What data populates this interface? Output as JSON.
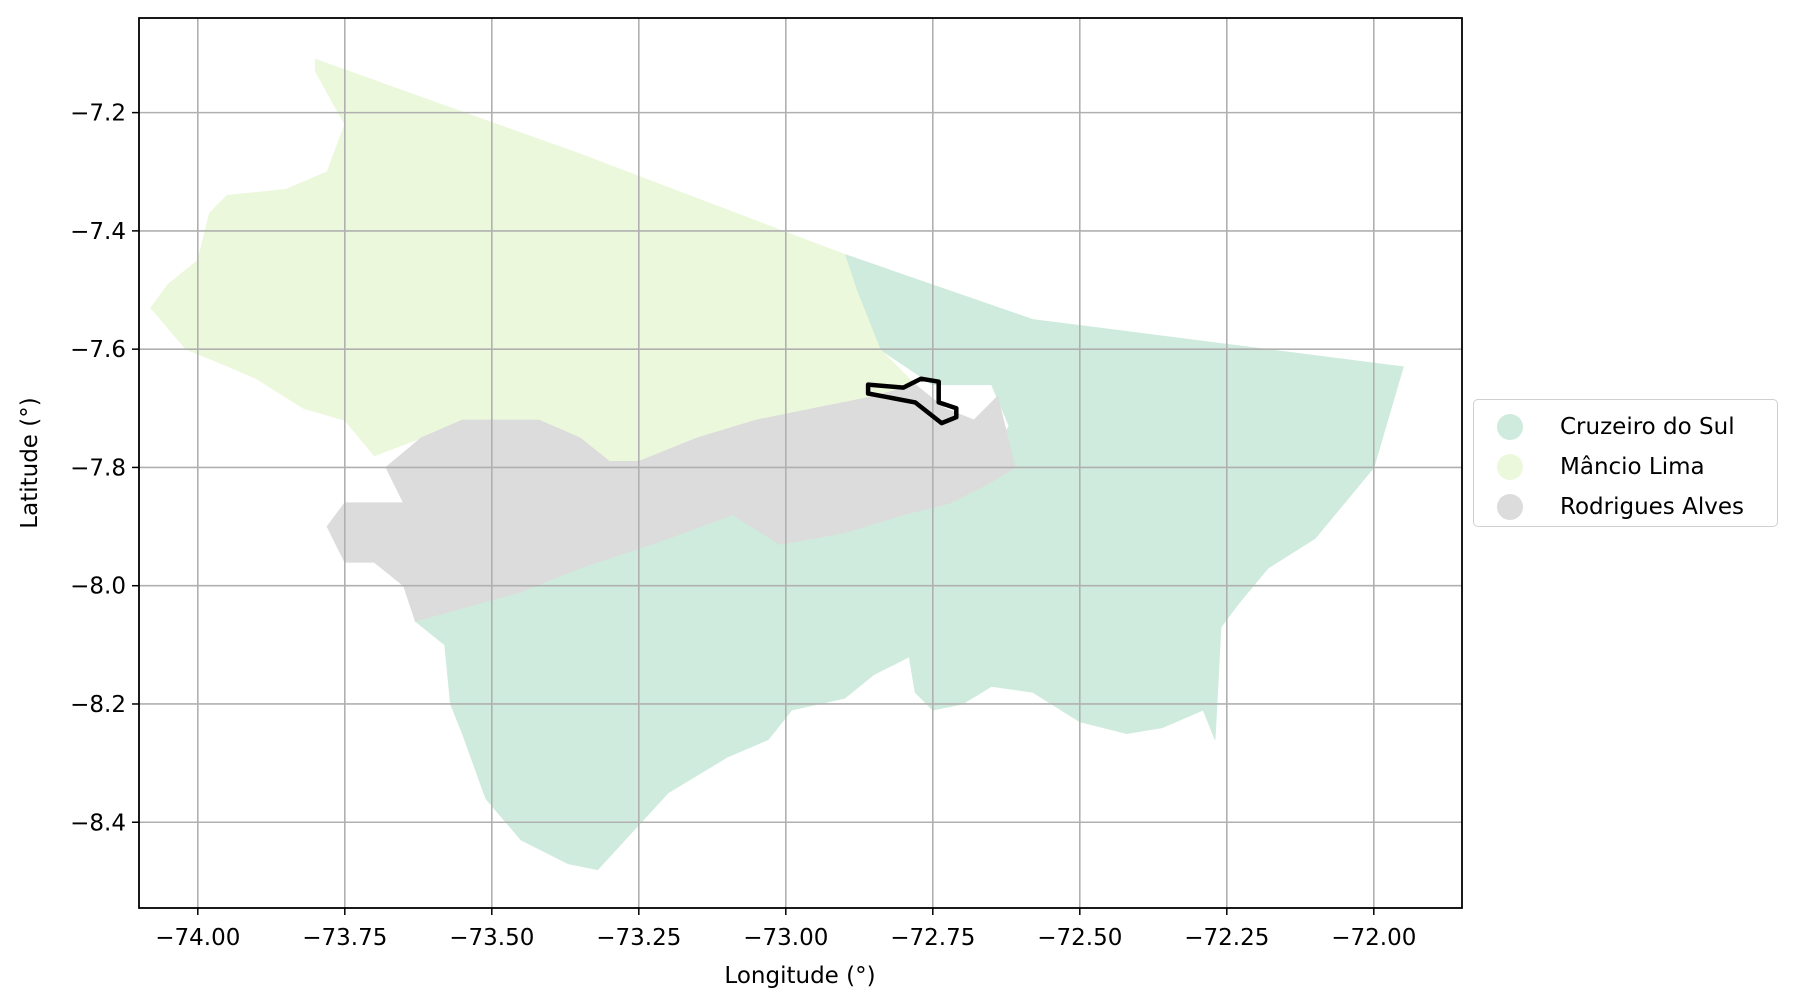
{
  "chart_data": {
    "type": "map",
    "xlabel": "Longitude (°)",
    "ylabel": "Latitude (°)",
    "xlim": [
      -74.1,
      -71.85
    ],
    "ylim": [
      -8.545,
      -7.04
    ],
    "xticks": [
      -74.0,
      -73.75,
      -73.5,
      -73.25,
      -73.0,
      -72.75,
      -72.5,
      -72.25,
      -72.0
    ],
    "xtick_labels": [
      "−74.00",
      "−73.75",
      "−73.50",
      "−73.25",
      "−73.00",
      "−72.75",
      "−72.50",
      "−72.25",
      "−72.00"
    ],
    "yticks": [
      -7.2,
      -7.4,
      -7.6,
      -7.8,
      -8.0,
      -8.2,
      -8.4
    ],
    "ytick_labels": [
      "−7.2",
      "−7.4",
      "−7.6",
      "−7.8",
      "−8.0",
      "−8.2",
      "−8.4"
    ],
    "grid": true,
    "legend_position": "right",
    "regions": [
      {
        "name": "Cruzeiro do Sul",
        "color": "#cfebdd",
        "polygon": [
          [
            -72.9,
            -7.44
          ],
          [
            -72.58,
            -7.55
          ],
          [
            -71.95,
            -7.63
          ],
          [
            -72.0,
            -7.8
          ],
          [
            -72.05,
            -7.86
          ],
          [
            -72.1,
            -7.92
          ],
          [
            -72.18,
            -7.97
          ],
          [
            -72.23,
            -8.03
          ],
          [
            -72.26,
            -8.07
          ],
          [
            -72.27,
            -8.26
          ],
          [
            -72.29,
            -8.21
          ],
          [
            -72.36,
            -8.24
          ],
          [
            -72.42,
            -8.25
          ],
          [
            -72.5,
            -8.23
          ],
          [
            -72.58,
            -8.18
          ],
          [
            -72.65,
            -8.17
          ],
          [
            -72.7,
            -8.2
          ],
          [
            -72.75,
            -8.21
          ],
          [
            -72.78,
            -8.18
          ],
          [
            -72.79,
            -8.12
          ],
          [
            -72.85,
            -8.15
          ],
          [
            -72.9,
            -8.19
          ],
          [
            -72.99,
            -8.21
          ],
          [
            -73.03,
            -8.26
          ],
          [
            -73.1,
            -8.29
          ],
          [
            -73.2,
            -8.35
          ],
          [
            -73.32,
            -8.48
          ],
          [
            -73.37,
            -8.47
          ],
          [
            -73.45,
            -8.43
          ],
          [
            -73.51,
            -8.36
          ],
          [
            -73.55,
            -8.25
          ],
          [
            -73.57,
            -8.2
          ],
          [
            -73.58,
            -8.1
          ],
          [
            -73.63,
            -8.06
          ],
          [
            -73.45,
            -8.01
          ],
          [
            -73.35,
            -7.97
          ],
          [
            -73.2,
            -7.92
          ],
          [
            -73.09,
            -7.88
          ],
          [
            -73.01,
            -7.93
          ],
          [
            -72.9,
            -7.91
          ],
          [
            -72.8,
            -7.88
          ],
          [
            -72.7,
            -7.85
          ],
          [
            -72.65,
            -7.78
          ],
          [
            -72.62,
            -7.73
          ],
          [
            -72.65,
            -7.66
          ],
          [
            -72.75,
            -7.66
          ],
          [
            -72.84,
            -7.6
          ],
          [
            -72.88,
            -7.5
          ]
        ]
      },
      {
        "name": "Mâncio Lima",
        "color": "#ecf8dc",
        "polygon": [
          [
            -73.8,
            -7.11
          ],
          [
            -73.35,
            -7.27
          ],
          [
            -72.9,
            -7.44
          ],
          [
            -72.88,
            -7.5
          ],
          [
            -72.84,
            -7.6
          ],
          [
            -72.78,
            -7.66
          ],
          [
            -72.85,
            -7.68
          ],
          [
            -72.95,
            -7.7
          ],
          [
            -73.05,
            -7.72
          ],
          [
            -73.15,
            -7.75
          ],
          [
            -73.25,
            -7.79
          ],
          [
            -73.3,
            -7.79
          ],
          [
            -73.35,
            -7.75
          ],
          [
            -73.42,
            -7.72
          ],
          [
            -73.55,
            -7.72
          ],
          [
            -73.62,
            -7.75
          ],
          [
            -73.7,
            -7.78
          ],
          [
            -73.75,
            -7.72
          ],
          [
            -73.82,
            -7.7
          ],
          [
            -73.9,
            -7.65
          ],
          [
            -73.97,
            -7.62
          ],
          [
            -74.02,
            -7.6
          ],
          [
            -74.08,
            -7.53
          ],
          [
            -74.05,
            -7.49
          ],
          [
            -74.0,
            -7.45
          ],
          [
            -73.98,
            -7.37
          ],
          [
            -73.95,
            -7.34
          ],
          [
            -73.85,
            -7.33
          ],
          [
            -73.78,
            -7.3
          ],
          [
            -73.75,
            -7.22
          ],
          [
            -73.8,
            -7.13
          ]
        ]
      },
      {
        "name": "Rodrigues Alves",
        "color": "#dcdcdc",
        "polygon": [
          [
            -72.78,
            -7.66
          ],
          [
            -72.73,
            -7.7
          ],
          [
            -72.68,
            -7.72
          ],
          [
            -72.64,
            -7.68
          ],
          [
            -72.61,
            -7.8
          ],
          [
            -72.66,
            -7.83
          ],
          [
            -72.72,
            -7.86
          ],
          [
            -72.8,
            -7.88
          ],
          [
            -72.9,
            -7.91
          ],
          [
            -73.01,
            -7.93
          ],
          [
            -73.09,
            -7.88
          ],
          [
            -73.2,
            -7.92
          ],
          [
            -73.35,
            -7.97
          ],
          [
            -73.45,
            -8.01
          ],
          [
            -73.63,
            -8.06
          ],
          [
            -73.65,
            -8.0
          ],
          [
            -73.7,
            -7.96
          ],
          [
            -73.75,
            -7.96
          ],
          [
            -73.78,
            -7.9
          ],
          [
            -73.75,
            -7.86
          ],
          [
            -73.65,
            -7.86
          ],
          [
            -73.68,
            -7.8
          ],
          [
            -73.62,
            -7.75
          ],
          [
            -73.55,
            -7.72
          ],
          [
            -73.42,
            -7.72
          ],
          [
            -73.35,
            -7.75
          ],
          [
            -73.3,
            -7.79
          ],
          [
            -73.25,
            -7.79
          ],
          [
            -73.15,
            -7.75
          ],
          [
            -73.05,
            -7.72
          ],
          [
            -72.95,
            -7.7
          ],
          [
            -72.85,
            -7.68
          ]
        ]
      }
    ],
    "highlight_outline": {
      "color": "#000000",
      "polygon": [
        [
          -72.86,
          -7.66
        ],
        [
          -72.8,
          -7.665
        ],
        [
          -72.77,
          -7.65
        ],
        [
          -72.74,
          -7.655
        ],
        [
          -72.74,
          -7.69
        ],
        [
          -72.71,
          -7.7
        ],
        [
          -72.71,
          -7.715
        ],
        [
          -72.735,
          -7.725
        ],
        [
          -72.78,
          -7.69
        ],
        [
          -72.86,
          -7.675
        ]
      ]
    }
  }
}
